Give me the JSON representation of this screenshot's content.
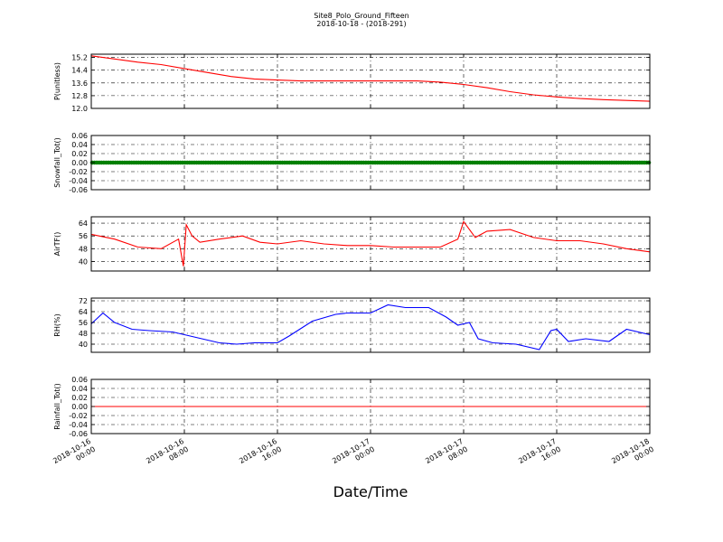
{
  "chart_data": {
    "type": "line",
    "title": "Site8_Polo_Ground_Fifteen",
    "subtitle": "2018-10-18 - (2018-291)",
    "xlabel": "Date/Time",
    "x_range": [
      "2018-10-16 00:00",
      "2018-10-18 00:00"
    ],
    "x_ticks": [
      "2018-10-16 00:00",
      "2018-10-16 08:00",
      "2018-10-16 16:00",
      "2018-10-17 00:00",
      "2018-10-17 08:00",
      "2018-10-17 16:00",
      "2018-10-18 00:00"
    ],
    "x_tick_labels": [
      [
        "2018-10-16",
        "00:00"
      ],
      [
        "2018-10-16",
        "08:00"
      ],
      [
        "2018-10-16",
        "16:00"
      ],
      [
        "2018-10-17",
        "00:00"
      ],
      [
        "2018-10-17",
        "08:00"
      ],
      [
        "2018-10-17",
        "16:00"
      ],
      [
        "2018-10-18",
        "00:00"
      ]
    ],
    "grid": "dash-dot",
    "panels": [
      {
        "ylabel": "P(unitless)",
        "ylim": [
          12.0,
          15.4
        ],
        "yticks": [
          "15.2",
          "14.4",
          "13.6",
          "12.8",
          "12.0"
        ],
        "color": "#ff0000",
        "marker": "none",
        "series": {
          "x": [
            "2018-10-16 00:00",
            "2018-10-16 02:00",
            "2018-10-16 04:00",
            "2018-10-16 06:00",
            "2018-10-16 08:00",
            "2018-10-16 10:00",
            "2018-10-16 12:00",
            "2018-10-16 14:00",
            "2018-10-16 16:00",
            "2018-10-16 18:00",
            "2018-10-16 20:00",
            "2018-10-16 22:00",
            "2018-10-17 00:00",
            "2018-10-17 02:00",
            "2018-10-17 04:00",
            "2018-10-17 06:00",
            "2018-10-17 08:00",
            "2018-10-17 10:00",
            "2018-10-17 12:00",
            "2018-10-17 14:00",
            "2018-10-17 16:00",
            "2018-10-17 18:00",
            "2018-10-17 20:00",
            "2018-10-17 22:00",
            "2018-10-18 00:00"
          ],
          "y": [
            15.3,
            15.1,
            14.9,
            14.75,
            14.5,
            14.25,
            14.0,
            13.85,
            13.78,
            13.72,
            13.72,
            13.72,
            13.72,
            13.72,
            13.72,
            13.65,
            13.5,
            13.3,
            13.05,
            12.85,
            12.72,
            12.62,
            12.55,
            12.5,
            12.45
          ]
        }
      },
      {
        "ylabel": "Snowfall_Tot()",
        "ylim": [
          -0.06,
          0.06
        ],
        "yticks": [
          "0.06",
          "0.04",
          "0.02",
          "0.00",
          "-0.02",
          "-0.04",
          "-0.06"
        ],
        "color": "#008000",
        "marker": "dots",
        "series": {
          "x": [
            "2018-10-16 00:00",
            "2018-10-18 00:00"
          ],
          "y": [
            0.0,
            0.0
          ]
        }
      },
      {
        "ylabel": "AirTF()",
        "ylim": [
          34,
          68
        ],
        "yticks": [
          "64",
          "56",
          "48",
          "40"
        ],
        "color": "#ff0000",
        "marker": "none",
        "series": {
          "x": [
            "2018-10-16 00:00",
            "2018-10-16 02:00",
            "2018-10-16 04:00",
            "2018-10-16 06:00",
            "2018-10-16 07:30",
            "2018-10-16 07:55",
            "2018-10-16 08:10",
            "2018-10-16 08:40",
            "2018-10-16 09:20",
            "2018-10-16 11:00",
            "2018-10-16 13:00",
            "2018-10-16 14:30",
            "2018-10-16 16:00",
            "2018-10-16 18:00",
            "2018-10-16 20:00",
            "2018-10-16 22:00",
            "2018-10-17 00:00",
            "2018-10-17 02:00",
            "2018-10-17 04:00",
            "2018-10-17 06:00",
            "2018-10-17 07:30",
            "2018-10-17 08:00",
            "2018-10-17 09:00",
            "2018-10-17 10:00",
            "2018-10-17 12:00",
            "2018-10-17 14:00",
            "2018-10-17 16:00",
            "2018-10-17 18:00",
            "2018-10-17 20:00",
            "2018-10-17 22:00",
            "2018-10-18 00:00"
          ],
          "y": [
            57,
            54,
            49,
            48,
            54,
            37,
            63,
            56,
            52,
            54,
            56,
            52,
            51,
            53,
            51,
            50,
            50,
            49,
            49,
            49,
            54,
            65,
            55,
            59,
            60,
            55,
            53,
            53,
            51,
            48,
            46
          ]
        }
      },
      {
        "ylabel": "RH(%)",
        "ylim": [
          34,
          74
        ],
        "yticks": [
          "72",
          "64",
          "56",
          "48",
          "40"
        ],
        "color": "#0000ff",
        "marker": "none",
        "series": {
          "x": [
            "2018-10-16 00:00",
            "2018-10-16 01:00",
            "2018-10-16 02:00",
            "2018-10-16 03:30",
            "2018-10-16 05:00",
            "2018-10-16 07:00",
            "2018-10-16 09:00",
            "2018-10-16 11:00",
            "2018-10-16 12:30",
            "2018-10-16 14:00",
            "2018-10-16 16:00",
            "2018-10-16 17:00",
            "2018-10-16 19:00",
            "2018-10-16 21:00",
            "2018-10-16 22:00",
            "2018-10-17 00:00",
            "2018-10-17 01:30",
            "2018-10-17 03:00",
            "2018-10-17 05:00",
            "2018-10-17 06:30",
            "2018-10-17 07:30",
            "2018-10-17 08:30",
            "2018-10-17 09:15",
            "2018-10-17 10:30",
            "2018-10-17 12:30",
            "2018-10-17 14:30",
            "2018-10-17 15:30",
            "2018-10-17 16:00",
            "2018-10-17 17:00",
            "2018-10-17 18:30",
            "2018-10-17 20:30",
            "2018-10-17 22:00",
            "2018-10-18 00:00"
          ],
          "y": [
            55,
            63,
            56,
            51,
            50,
            49,
            45,
            41,
            40,
            41,
            41,
            46,
            57,
            62,
            63,
            63,
            69,
            67,
            67,
            60,
            54,
            56,
            44,
            41,
            40,
            36,
            50,
            51,
            42,
            44,
            42,
            51,
            47
          ]
        }
      },
      {
        "ylabel": "Rainfall_Tot()",
        "ylim": [
          -0.06,
          0.06
        ],
        "yticks": [
          "0.06",
          "0.04",
          "0.02",
          "0.00",
          "-0.02",
          "-0.04",
          "-0.06"
        ],
        "color": "#ff0000",
        "marker": "none",
        "series": {
          "x": [
            "2018-10-16 00:00",
            "2018-10-18 00:00"
          ],
          "y": [
            0.0,
            0.0
          ]
        }
      }
    ]
  }
}
